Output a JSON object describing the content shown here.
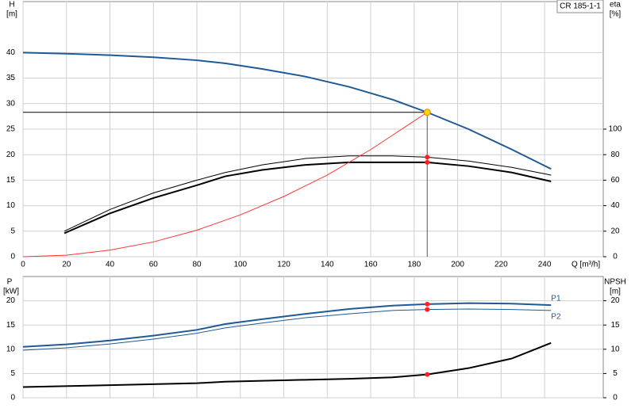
{
  "chart_data": [
    {
      "type": "line",
      "model_label": "CR 185-1-1",
      "ylabel": "H",
      "yunit": "[m]",
      "y2label": "eta",
      "y2unit": "[%]",
      "xlabel": "Q [m³/h]",
      "xlim": [
        0,
        267
      ],
      "xticks": [
        0,
        20,
        40,
        60,
        80,
        100,
        120,
        140,
        160,
        180,
        200,
        220,
        240
      ],
      "ylim": [
        0,
        50
      ],
      "yticks": [
        0,
        5,
        10,
        15,
        20,
        25,
        30,
        35,
        40
      ],
      "y2lim": [
        0,
        200
      ],
      "y2ticks": [
        0,
        20,
        40,
        60,
        80,
        100
      ],
      "grid": true,
      "series": [
        {
          "color": "#1f5a96",
          "width": 2,
          "axis": "y",
          "x": [
            0,
            20,
            40,
            60,
            80,
            93,
            110,
            130,
            150,
            170,
            186,
            205,
            225,
            243
          ],
          "values": [
            40,
            39.8,
            39.5,
            39.1,
            38.5,
            37.9,
            36.8,
            35.3,
            33.3,
            30.8,
            28.3,
            25,
            21,
            17.2
          ]
        },
        {
          "color": "#000000",
          "width": 1,
          "axis": "y2",
          "x": [
            19,
            40,
            60,
            80,
            93,
            110,
            130,
            150,
            170,
            186,
            205,
            225,
            243
          ],
          "values": [
            20,
            37,
            50,
            60,
            66,
            72,
            77,
            79,
            79,
            78,
            75,
            70,
            64
          ]
        },
        {
          "color": "#000000",
          "width": 2,
          "axis": "y2",
          "x": [
            19,
            40,
            60,
            80,
            93,
            110,
            130,
            150,
            170,
            186,
            205,
            225,
            243
          ],
          "values": [
            18.4,
            34,
            46,
            56,
            63,
            68,
            72,
            74,
            74,
            74,
            71,
            66,
            59
          ]
        },
        {
          "color": "#ff3333",
          "width": 1,
          "axis": "y",
          "x": [
            0,
            20,
            40,
            60,
            80,
            100,
            120,
            140,
            160,
            186
          ],
          "values": [
            0,
            0.3,
            1.3,
            2.9,
            5.2,
            8.2,
            11.8,
            16,
            21,
            28.3
          ]
        }
      ],
      "operating_point": {
        "x": 186,
        "y": 28.3
      },
      "markers": [
        {
          "x": 186,
          "y": 78,
          "axis": "y2"
        },
        {
          "x": 186,
          "y": 74,
          "axis": "y2"
        }
      ]
    },
    {
      "type": "line",
      "ylabel": "P",
      "yunit": "[kW]",
      "y2label": "NPSH",
      "y2unit": "[m]",
      "xlim": [
        0,
        267
      ],
      "xticks": [
        0,
        20,
        40,
        60,
        80,
        100,
        120,
        140,
        160,
        180,
        200,
        220,
        240
      ],
      "ylim": [
        0,
        25
      ],
      "yticks": [
        0,
        5,
        10,
        15,
        20
      ],
      "y2lim": [
        0,
        25
      ],
      "y2ticks": [
        0,
        5,
        10,
        15,
        20
      ],
      "grid": true,
      "series": [
        {
          "name": "P1",
          "color": "#1f5a96",
          "width": 2,
          "axis": "y",
          "x": [
            0,
            20,
            40,
            60,
            80,
            93,
            110,
            130,
            150,
            170,
            186,
            205,
            225,
            243
          ],
          "values": [
            10.5,
            11,
            11.8,
            12.8,
            14,
            15.2,
            16.2,
            17.3,
            18.3,
            19,
            19.3,
            19.5,
            19.4,
            19.1
          ]
        },
        {
          "name": "P2",
          "color": "#1f5a96",
          "width": 1,
          "axis": "y",
          "x": [
            0,
            20,
            40,
            60,
            80,
            93,
            110,
            130,
            150,
            170,
            186,
            205,
            225,
            243
          ],
          "values": [
            9.8,
            10.3,
            11.1,
            12.1,
            13.3,
            14.4,
            15.4,
            16.5,
            17.3,
            18,
            18.2,
            18.3,
            18.2,
            18
          ]
        },
        {
          "color": "#000000",
          "width": 2,
          "axis": "y2",
          "x": [
            0,
            40,
            80,
            93,
            130,
            150,
            170,
            186,
            205,
            225,
            243
          ],
          "values": [
            2.2,
            2.6,
            3,
            3.3,
            3.7,
            3.9,
            4.2,
            4.8,
            6.1,
            8.1,
            11.3
          ]
        }
      ],
      "markers": [
        {
          "x": 186,
          "y": 19.3,
          "axis": "y"
        },
        {
          "x": 186,
          "y": 18.2,
          "axis": "y"
        },
        {
          "x": 186,
          "y": 4.8,
          "axis": "y2"
        }
      ]
    }
  ]
}
